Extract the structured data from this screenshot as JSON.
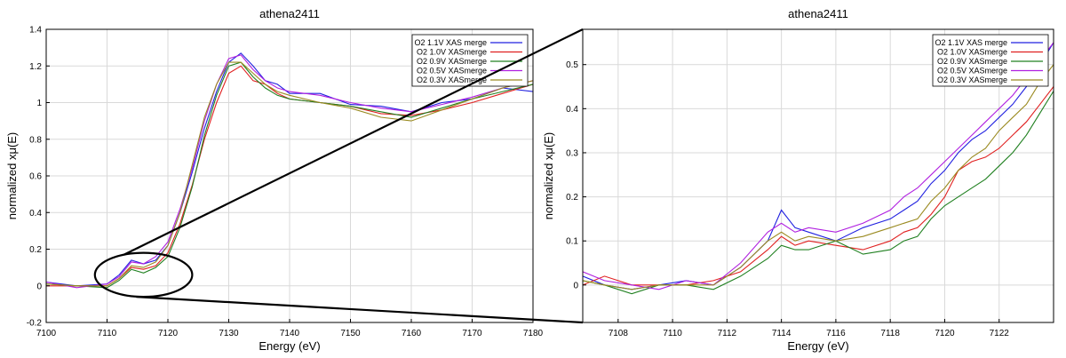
{
  "chart_data": [
    {
      "type": "line",
      "title": "athena2411",
      "xlabel": "Energy    (eV)",
      "ylabel": "normalized xμ(E)",
      "xlim": [
        7100,
        7180
      ],
      "ylim": [
        -0.2,
        1.4
      ],
      "xticks": [
        7100,
        7110,
        7120,
        7130,
        7140,
        7150,
        7160,
        7170,
        7180
      ],
      "xtick_labels": [
        "7100",
        "7110",
        "7120",
        "7130",
        "7140",
        "7150",
        "7160",
        "7170",
        "7180"
      ],
      "yticks": [
        -0.2,
        0,
        0.2,
        0.4,
        0.6,
        0.8,
        1,
        1.2,
        1.4
      ],
      "ytick_labels": [
        "-0.2",
        "0",
        "0.2",
        "0.4",
        "0.6",
        "0.8",
        "1",
        "1.2",
        "1.4"
      ],
      "grid": true,
      "legend_position": "top-right",
      "series": [
        {
          "name": "O2 1.1V XAS merge",
          "color": "#2020e0",
          "x": [
            7100,
            7105,
            7110,
            7112,
            7114,
            7116,
            7118,
            7120,
            7122,
            7124,
            7126,
            7128,
            7130,
            7132,
            7134,
            7136,
            7138,
            7140,
            7145,
            7150,
            7155,
            7160,
            7165,
            7170,
            7175,
            7180
          ],
          "y": [
            0.02,
            0.0,
            0.01,
            0.06,
            0.14,
            0.12,
            0.14,
            0.22,
            0.4,
            0.62,
            0.86,
            1.06,
            1.22,
            1.27,
            1.2,
            1.12,
            1.1,
            1.05,
            1.05,
            0.99,
            0.98,
            0.95,
            1.0,
            1.02,
            1.08,
            1.06
          ]
        },
        {
          "name": "O2 1.0V XASmerge",
          "color": "#e02020",
          "x": [
            7100,
            7105,
            7110,
            7112,
            7114,
            7116,
            7118,
            7120,
            7122,
            7124,
            7126,
            7128,
            7130,
            7132,
            7134,
            7136,
            7138,
            7140,
            7145,
            7150,
            7155,
            7160,
            7165,
            7170,
            7175,
            7180
          ],
          "y": [
            0.0,
            0.0,
            0.0,
            0.04,
            0.1,
            0.09,
            0.11,
            0.18,
            0.34,
            0.55,
            0.8,
            1.0,
            1.16,
            1.2,
            1.12,
            1.1,
            1.05,
            1.02,
            1.0,
            0.98,
            0.94,
            0.93,
            0.96,
            1.0,
            1.05,
            1.1
          ]
        },
        {
          "name": "O2 0.9V XASmerge",
          "color": "#208020",
          "x": [
            7100,
            7105,
            7110,
            7112,
            7114,
            7116,
            7118,
            7120,
            7122,
            7124,
            7126,
            7128,
            7130,
            7132,
            7134,
            7136,
            7138,
            7140,
            7145,
            7150,
            7155,
            7160,
            7165,
            7170,
            7175,
            7180
          ],
          "y": [
            0.01,
            0.0,
            -0.01,
            0.03,
            0.09,
            0.07,
            0.1,
            0.16,
            0.32,
            0.54,
            0.82,
            1.04,
            1.2,
            1.22,
            1.14,
            1.08,
            1.04,
            1.02,
            1.0,
            0.98,
            0.95,
            0.92,
            0.97,
            1.02,
            1.06,
            1.1
          ]
        },
        {
          "name": "O2 0.5V XASmerge",
          "color": "#b020e0",
          "x": [
            7100,
            7105,
            7110,
            7112,
            7114,
            7116,
            7118,
            7120,
            7122,
            7124,
            7126,
            7128,
            7130,
            7132,
            7134,
            7136,
            7138,
            7140,
            7145,
            7150,
            7155,
            7160,
            7165,
            7170,
            7175,
            7180
          ],
          "y": [
            0.02,
            -0.01,
            0.01,
            0.05,
            0.13,
            0.12,
            0.16,
            0.24,
            0.42,
            0.64,
            0.9,
            1.1,
            1.24,
            1.26,
            1.18,
            1.12,
            1.08,
            1.06,
            1.04,
            1.0,
            0.97,
            0.95,
            0.99,
            1.03,
            1.08,
            1.12
          ]
        },
        {
          "name": "O2 0.3V XASmerge",
          "color": "#9a8a20",
          "x": [
            7100,
            7105,
            7110,
            7112,
            7114,
            7116,
            7118,
            7120,
            7122,
            7124,
            7126,
            7128,
            7130,
            7132,
            7134,
            7136,
            7138,
            7140,
            7145,
            7150,
            7155,
            7160,
            7165,
            7170,
            7175,
            7180
          ],
          "y": [
            0.01,
            0.0,
            0.0,
            0.04,
            0.11,
            0.1,
            0.13,
            0.22,
            0.4,
            0.66,
            0.92,
            1.1,
            1.22,
            1.22,
            1.16,
            1.1,
            1.06,
            1.04,
            1.0,
            0.97,
            0.92,
            0.9,
            0.96,
            1.02,
            1.08,
            1.12
          ]
        }
      ]
    },
    {
      "type": "line",
      "title": "athena2411",
      "xlabel": "Energy    (eV)",
      "ylabel": "normalized xμ(E)",
      "xlim": [
        7106.7,
        7124
      ],
      "ylim": [
        -0.085,
        0.58
      ],
      "xticks": [
        7108,
        7110,
        7112,
        7114,
        7116,
        7118,
        7120,
        7122
      ],
      "xtick_labels": [
        "7108",
        "7110",
        "7112",
        "7114",
        "7116",
        "7118",
        "7120",
        "7122"
      ],
      "yticks": [
        0,
        0.1,
        0.2,
        0.3,
        0.4,
        0.5
      ],
      "ytick_labels": [
        "0",
        "0.1",
        "0.2",
        "0.3",
        "0.4",
        "0.5"
      ],
      "grid": true,
      "legend_position": "top-right",
      "series": [
        {
          "name": "O2 1.1V XAS merge",
          "color": "#2020e0",
          "x": [
            7106.7,
            7107.5,
            7108.5,
            7109.5,
            7110.5,
            7111.5,
            7112.5,
            7113.5,
            7114,
            7114.5,
            7115,
            7116,
            7117,
            7118,
            7118.5,
            7119,
            7119.5,
            7120,
            7120.5,
            7121,
            7121.5,
            7122,
            7122.5,
            7123,
            7123.5,
            7124
          ],
          "y": [
            0.02,
            0.0,
            -0.01,
            0.0,
            0.01,
            0.0,
            0.04,
            0.1,
            0.17,
            0.13,
            0.12,
            0.1,
            0.13,
            0.15,
            0.17,
            0.19,
            0.23,
            0.26,
            0.3,
            0.33,
            0.35,
            0.38,
            0.41,
            0.45,
            0.5,
            0.55
          ]
        },
        {
          "name": "O2 1.0V XASmerge",
          "color": "#e02020",
          "x": [
            7106.7,
            7107.5,
            7108.5,
            7109.5,
            7110.5,
            7111.5,
            7112.5,
            7113.5,
            7114,
            7114.5,
            7115,
            7116,
            7117,
            7118,
            7118.5,
            7119,
            7119.5,
            7120,
            7120.5,
            7121,
            7121.5,
            7122,
            7122.5,
            7123,
            7123.5,
            7124
          ],
          "y": [
            0.0,
            0.02,
            0.0,
            0.0,
            0.0,
            0.01,
            0.03,
            0.08,
            0.11,
            0.09,
            0.1,
            0.09,
            0.08,
            0.1,
            0.12,
            0.13,
            0.16,
            0.2,
            0.26,
            0.28,
            0.29,
            0.31,
            0.34,
            0.37,
            0.41,
            0.45
          ]
        },
        {
          "name": "O2 0.9V XASmerge",
          "color": "#208020",
          "x": [
            7106.7,
            7107.5,
            7108.5,
            7109.5,
            7110.5,
            7111.5,
            7112.5,
            7113.5,
            7114,
            7114.5,
            7115,
            7116,
            7117,
            7118,
            7118.5,
            7119,
            7119.5,
            7120,
            7120.5,
            7121,
            7121.5,
            7122,
            7122.5,
            7123,
            7123.5,
            7124
          ],
          "y": [
            0.01,
            0.0,
            -0.02,
            0.0,
            0.0,
            -0.01,
            0.02,
            0.06,
            0.09,
            0.08,
            0.08,
            0.1,
            0.07,
            0.08,
            0.1,
            0.11,
            0.15,
            0.18,
            0.2,
            0.22,
            0.24,
            0.27,
            0.3,
            0.34,
            0.39,
            0.44
          ]
        },
        {
          "name": "O2 0.5V XASmerge",
          "color": "#b020e0",
          "x": [
            7106.7,
            7107.5,
            7108.5,
            7109.5,
            7110.5,
            7111.5,
            7112.5,
            7113.5,
            7114,
            7114.5,
            7115,
            7116,
            7117,
            7118,
            7118.5,
            7119,
            7119.5,
            7120,
            7120.5,
            7121,
            7121.5,
            7122,
            7122.5,
            7123,
            7123.5,
            7124
          ],
          "y": [
            0.03,
            0.01,
            0.0,
            -0.01,
            0.01,
            0.0,
            0.05,
            0.12,
            0.14,
            0.12,
            0.13,
            0.12,
            0.14,
            0.17,
            0.2,
            0.22,
            0.25,
            0.28,
            0.31,
            0.34,
            0.37,
            0.4,
            0.43,
            0.47,
            0.51,
            0.55
          ]
        },
        {
          "name": "O2 0.3V XASmerge",
          "color": "#9a8a20",
          "x": [
            7106.7,
            7107.5,
            7108.5,
            7109.5,
            7110.5,
            7111.5,
            7112.5,
            7113.5,
            7114,
            7114.5,
            7115,
            7116,
            7117,
            7118,
            7118.5,
            7119,
            7119.5,
            7120,
            7120.5,
            7121,
            7121.5,
            7122,
            7122.5,
            7123,
            7123.5,
            7124
          ],
          "y": [
            0.01,
            0.0,
            -0.01,
            0.0,
            0.0,
            0.0,
            0.04,
            0.1,
            0.12,
            0.1,
            0.11,
            0.1,
            0.11,
            0.13,
            0.14,
            0.15,
            0.19,
            0.22,
            0.26,
            0.29,
            0.31,
            0.35,
            0.38,
            0.41,
            0.46,
            0.5
          ]
        }
      ]
    }
  ]
}
